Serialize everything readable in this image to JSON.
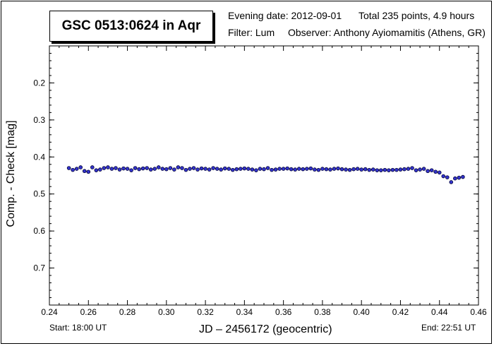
{
  "header": {
    "title": "GSC 0513:0624 in Aqr",
    "evening_date": "Evening date: 2012-09-01",
    "total": "Total 235 points, 4.9 hours",
    "filter": "Filter: Lum",
    "observer": "Observer: Anthony Ayiomamitis (Athens, GR)"
  },
  "footer": {
    "start": "Start: 18:00 UT",
    "end": "End: 22:51 UT"
  },
  "colors": {
    "marker_fill": "#3333cc",
    "marker_edge": "#000033"
  },
  "chart_data": {
    "type": "scatter",
    "title": "GSC 0513:0624 in Aqr",
    "xlabel": "JD – 2456172  (geocentric)",
    "ylabel": "Comp. - Check [mag]",
    "xlim": [
      0.24,
      0.46
    ],
    "ylim": [
      0.1,
      0.8
    ],
    "y_inverted": true,
    "grid": false,
    "x_ticks": [
      "0.24",
      "0.26",
      "0.28",
      "0.30",
      "0.32",
      "0.34",
      "0.36",
      "0.38",
      "0.40",
      "0.42",
      "0.44",
      "0.46"
    ],
    "y_ticks": [
      "0.2",
      "0.3",
      "0.4",
      "0.5",
      "0.6",
      "0.7"
    ],
    "series": [
      {
        "x": [
          0.25,
          0.252,
          0.254,
          0.256,
          0.258,
          0.26,
          0.262,
          0.264,
          0.266,
          0.268,
          0.27,
          0.272,
          0.274,
          0.276,
          0.278,
          0.28,
          0.282,
          0.284,
          0.286,
          0.288,
          0.29,
          0.292,
          0.294,
          0.296,
          0.298,
          0.3,
          0.302,
          0.304,
          0.306,
          0.308,
          0.31,
          0.312,
          0.314,
          0.316,
          0.318,
          0.32,
          0.322,
          0.324,
          0.326,
          0.328,
          0.33,
          0.332,
          0.334,
          0.336,
          0.338,
          0.34,
          0.342,
          0.344,
          0.346,
          0.348,
          0.35,
          0.352,
          0.354,
          0.356,
          0.358,
          0.36,
          0.362,
          0.364,
          0.366,
          0.368,
          0.37,
          0.372,
          0.374,
          0.376,
          0.378,
          0.38,
          0.382,
          0.384,
          0.386,
          0.388,
          0.39,
          0.392,
          0.394,
          0.396,
          0.398,
          0.4,
          0.402,
          0.404,
          0.406,
          0.408,
          0.41,
          0.412,
          0.414,
          0.416,
          0.418,
          0.42,
          0.422,
          0.424,
          0.426,
          0.428,
          0.43,
          0.432,
          0.434,
          0.436,
          0.438,
          0.44,
          0.442,
          0.444,
          0.446,
          0.448,
          0.45,
          0.452
        ],
        "y": [
          0.43,
          0.435,
          0.432,
          0.428,
          0.438,
          0.44,
          0.428,
          0.436,
          0.434,
          0.43,
          0.428,
          0.432,
          0.43,
          0.434,
          0.431,
          0.432,
          0.436,
          0.43,
          0.433,
          0.431,
          0.43,
          0.434,
          0.432,
          0.428,
          0.432,
          0.433,
          0.43,
          0.434,
          0.428,
          0.43,
          0.435,
          0.432,
          0.43,
          0.434,
          0.431,
          0.432,
          0.434,
          0.43,
          0.432,
          0.434,
          0.431,
          0.432,
          0.435,
          0.433,
          0.432,
          0.431,
          0.432,
          0.434,
          0.436,
          0.432,
          0.433,
          0.43,
          0.435,
          0.434,
          0.432,
          0.432,
          0.431,
          0.433,
          0.434,
          0.432,
          0.433,
          0.432,
          0.431,
          0.434,
          0.435,
          0.432,
          0.433,
          0.434,
          0.432,
          0.431,
          0.433,
          0.434,
          0.435,
          0.433,
          0.432,
          0.434,
          0.433,
          0.435,
          0.434,
          0.436,
          0.436,
          0.435,
          0.436,
          0.435,
          0.435,
          0.434,
          0.433,
          0.432,
          0.43,
          0.436,
          0.434,
          0.432,
          0.438,
          0.436,
          0.44,
          0.442,
          0.452,
          0.455,
          0.468,
          0.458,
          0.456,
          0.454
        ]
      }
    ]
  }
}
